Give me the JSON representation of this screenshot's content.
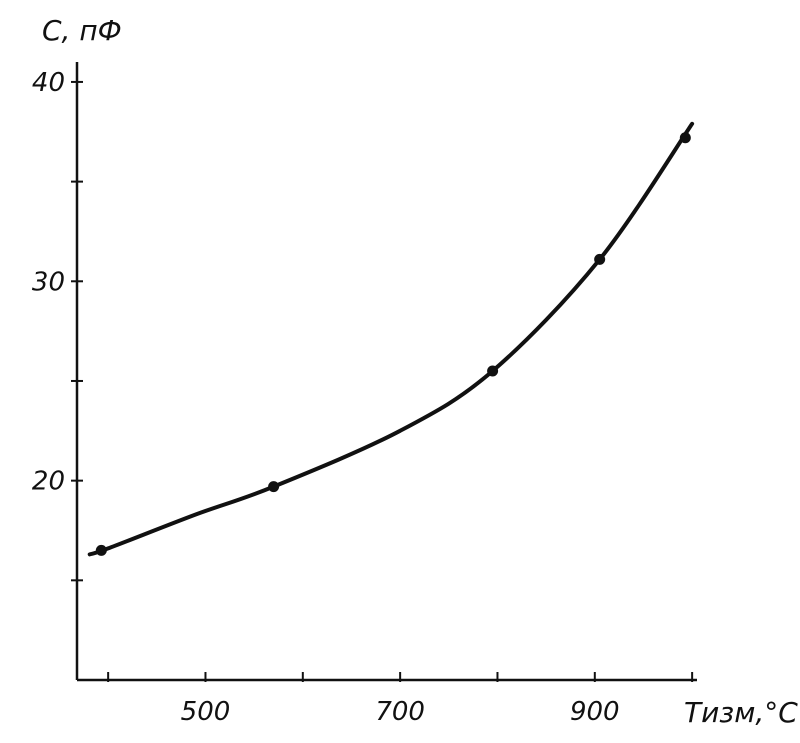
{
  "chart_data": {
    "type": "line",
    "title": "",
    "xlabel": "Tизм,°C",
    "ylabel": "C, пФ",
    "xlim": [
      368,
      1005
    ],
    "ylim": [
      10,
      41
    ],
    "x_ticks": [
      400,
      500,
      600,
      700,
      800,
      900,
      1000
    ],
    "x_tick_labels": [
      {
        "value": 500,
        "label": "500"
      },
      {
        "value": 700,
        "label": "700"
      },
      {
        "value": 900,
        "label": "900"
      }
    ],
    "y_ticks": [
      15,
      20,
      25,
      30,
      35,
      40
    ],
    "y_tick_labels": [
      {
        "value": 20,
        "label": "20"
      },
      {
        "value": 30,
        "label": "30"
      },
      {
        "value": 40,
        "label": "40"
      }
    ],
    "grid": false,
    "series": [
      {
        "x": [
          381,
          400,
          490,
          570,
          700,
          795,
          905,
          1000
        ],
        "y": [
          16.3,
          16.6,
          18.3,
          19.7,
          22.5,
          25.5,
          31.1,
          37.9
        ]
      }
    ],
    "markers": {
      "x": [
        393,
        570,
        795,
        905,
        993
      ],
      "y": [
        16.5,
        19.7,
        25.5,
        31.1,
        37.2
      ]
    },
    "colors": {
      "line": "#111111",
      "background": "#ffffff"
    }
  }
}
